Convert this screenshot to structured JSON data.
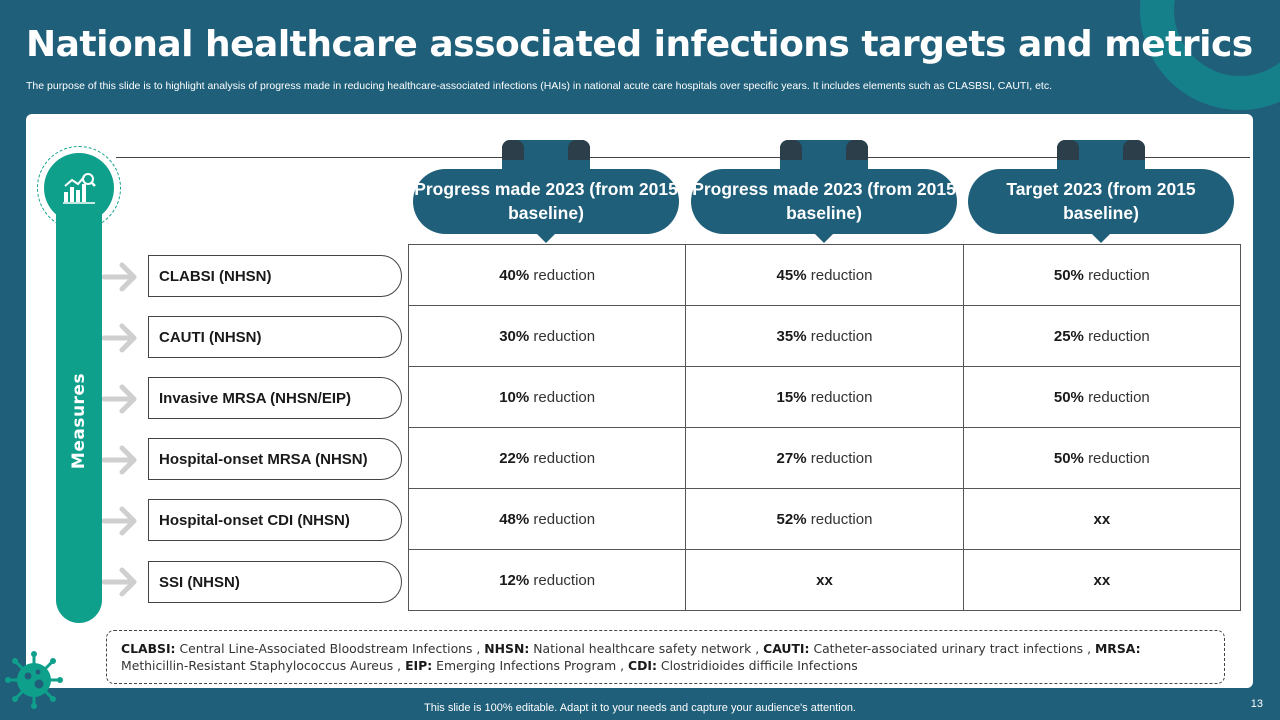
{
  "title": "National healthcare associated infections targets and metrics",
  "subtitle": "The purpose of this slide is to highlight analysis of progress made in reducing healthcare-associated infections (HAIs) in national acute care hospitals over specific years. It includes elements such as CLASBSI, CAUTI, etc.",
  "sidebar": {
    "label": "Measures",
    "icon": "chart-analysis-icon"
  },
  "headers": [
    "Progress made 2023 (from 2015 baseline)",
    "Progress made 2023 (from 2015 baseline)",
    "Target 2023 (from 2015 baseline)"
  ],
  "rows": [
    {
      "measure": "CLABSI (NHSN)",
      "cells": [
        {
          "value": "40%",
          "unit": "reduction"
        },
        {
          "value": "45%",
          "unit": "reduction"
        },
        {
          "value": "50%",
          "unit": "reduction"
        }
      ]
    },
    {
      "measure": "CAUTI (NHSN)",
      "cells": [
        {
          "value": "30%",
          "unit": "reduction"
        },
        {
          "value": "35%",
          "unit": "reduction"
        },
        {
          "value": "25%",
          "unit": "reduction"
        }
      ]
    },
    {
      "measure": "Invasive MRSA (NHSN/EIP)",
      "cells": [
        {
          "value": "10%",
          "unit": "reduction"
        },
        {
          "value": "15%",
          "unit": "reduction"
        },
        {
          "value": "50%",
          "unit": "reduction"
        }
      ]
    },
    {
      "measure": "Hospital-onset MRSA (NHSN)",
      "cells": [
        {
          "value": "22%",
          "unit": "reduction"
        },
        {
          "value": "27%",
          "unit": "reduction"
        },
        {
          "value": "50%",
          "unit": "reduction"
        }
      ]
    },
    {
      "measure": "Hospital-onset CDI (NHSN)",
      "cells": [
        {
          "value": "48%",
          "unit": "reduction"
        },
        {
          "value": "52%",
          "unit": "reduction"
        },
        {
          "value": "xx",
          "unit": ""
        }
      ]
    },
    {
      "measure": "SSI (NHSN)",
      "cells": [
        {
          "value": "12%",
          "unit": "reduction"
        },
        {
          "value": "xx",
          "unit": ""
        },
        {
          "value": "xx",
          "unit": ""
        }
      ]
    }
  ],
  "footnote": {
    "t1": "CLABSI:",
    "d1": " Central Line-Associated Bloodstream Infections , ",
    "t2": "NHSN:",
    "d2": " National healthcare safety network , ",
    "t3": "CAUTI:",
    "d3": " Catheter-associated urinary tract infections , ",
    "t4": "MRSA:",
    "d4": " Methicillin-Resistant Staphylococcus Aureus , ",
    "t5": "EIP:",
    "d5": " Emerging Infections Program , ",
    "t6": "CDI:",
    "d6": " Clostridioides difficile Infections"
  },
  "bottom_note": "This slide is 100% editable. Adapt it to your needs and capture your audience's attention.",
  "page_number": "13",
  "colors": {
    "navy": "#1f5f7a",
    "teal": "#0fa08c",
    "ring": "#16808a"
  }
}
